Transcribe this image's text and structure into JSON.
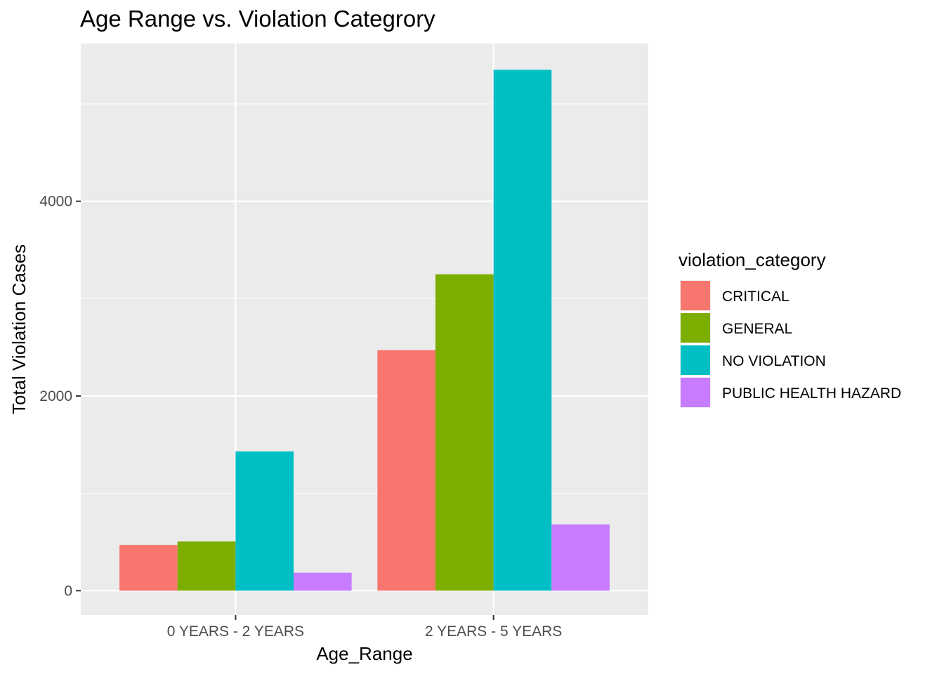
{
  "chart_data": {
    "type": "bar",
    "title": "Age Range vs. Violation Categrory",
    "xlabel": "Age_Range",
    "ylabel": "Total Violation Cases",
    "categories": [
      "0 YEARS - 2 YEARS",
      "2 YEARS - 5 YEARS"
    ],
    "series": [
      {
        "name": "CRITICAL",
        "color": "#F8766D",
        "values": [
          470,
          2470
        ]
      },
      {
        "name": "GENERAL",
        "color": "#7CAE00",
        "values": [
          505,
          3250
        ]
      },
      {
        "name": "NO VIOLATION",
        "color": "#00BFC4",
        "values": [
          1430,
          5350
        ]
      },
      {
        "name": "PUBLIC HEALTH HAZARD",
        "color": "#C77CFF",
        "values": [
          185,
          680
        ]
      }
    ],
    "yticks": [
      0,
      2000,
      4000
    ],
    "ylim": [
      -250,
      5620
    ],
    "grid": true,
    "legend": {
      "title": "violation_category",
      "position": "right"
    },
    "panel_background": "#EBEBEB"
  }
}
